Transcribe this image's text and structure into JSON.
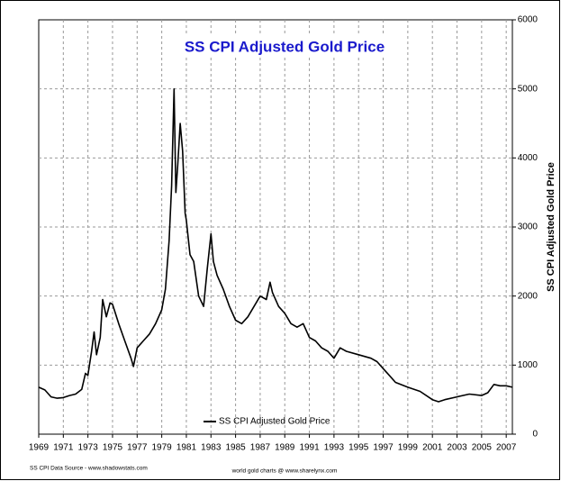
{
  "chart_data": {
    "type": "line",
    "title": "SS CPI Adjusted Gold Price",
    "y_label": "SS CPI Adjusted Gold Price",
    "source": "SS CPI Data Source - www.shadowstats.com",
    "credit": "world gold charts @ www.sharelynx.com",
    "x": [
      1969.0,
      1969.5,
      1970.0,
      1970.5,
      1971.0,
      1971.5,
      1972.0,
      1972.5,
      1972.8,
      1973.0,
      1973.3,
      1973.5,
      1973.7,
      1974.0,
      1974.2,
      1974.5,
      1974.8,
      1975.0,
      1975.5,
      1976.0,
      1976.5,
      1976.7,
      1977.0,
      1977.5,
      1978.0,
      1978.5,
      1979.0,
      1979.3,
      1979.6,
      1979.8,
      1980.0,
      1980.15,
      1980.3,
      1980.5,
      1980.7,
      1980.9,
      1981.0,
      1981.3,
      1981.6,
      1982.0,
      1982.4,
      1982.7,
      1983.0,
      1983.2,
      1983.5,
      1984.0,
      1984.5,
      1985.0,
      1985.5,
      1986.0,
      1986.5,
      1987.0,
      1987.5,
      1987.8,
      1988.0,
      1988.5,
      1989.0,
      1989.5,
      1990.0,
      1990.5,
      1991.0,
      1991.5,
      1992.0,
      1992.5,
      1993.0,
      1993.5,
      1994.0,
      1995.0,
      1996.0,
      1996.5,
      1997.0,
      1997.5,
      1998.0,
      1999.0,
      2000.0,
      2001.0,
      2001.5,
      2002.0,
      2003.0,
      2004.0,
      2005.0,
      2005.5,
      2006.0,
      2006.5,
      2007.0,
      2007.5
    ],
    "series": [
      {
        "name": "SS CPI Adjusted Gold Price",
        "color": "#000000",
        "values": [
          680,
          640,
          540,
          520,
          530,
          560,
          580,
          650,
          880,
          850,
          1200,
          1480,
          1150,
          1400,
          1950,
          1700,
          1900,
          1880,
          1600,
          1350,
          1100,
          980,
          1250,
          1350,
          1450,
          1600,
          1800,
          2100,
          2800,
          3600,
          5000,
          3500,
          3900,
          4500,
          4100,
          3200,
          3100,
          2600,
          2500,
          2000,
          1850,
          2400,
          2900,
          2500,
          2300,
          2100,
          1850,
          1650,
          1600,
          1700,
          1850,
          2000,
          1950,
          2200,
          2050,
          1850,
          1750,
          1600,
          1550,
          1600,
          1400,
          1350,
          1250,
          1200,
          1100,
          1250,
          1200,
          1150,
          1100,
          1050,
          950,
          850,
          750,
          680,
          620,
          500,
          470,
          500,
          540,
          580,
          560,
          600,
          720,
          700,
          700,
          680
        ]
      }
    ],
    "xlim": [
      1969,
      2007.5
    ],
    "xticks": [
      1969,
      1971,
      1973,
      1975,
      1977,
      1979,
      1981,
      1983,
      1985,
      1987,
      1989,
      1991,
      1993,
      1995,
      1997,
      1999,
      2001,
      2003,
      2005,
      2007
    ],
    "ylim": [
      0,
      6000
    ],
    "yticks": [
      0,
      1000,
      2000,
      3000,
      4000,
      5000,
      6000
    ],
    "grid": true,
    "legend": "bottom-left"
  }
}
